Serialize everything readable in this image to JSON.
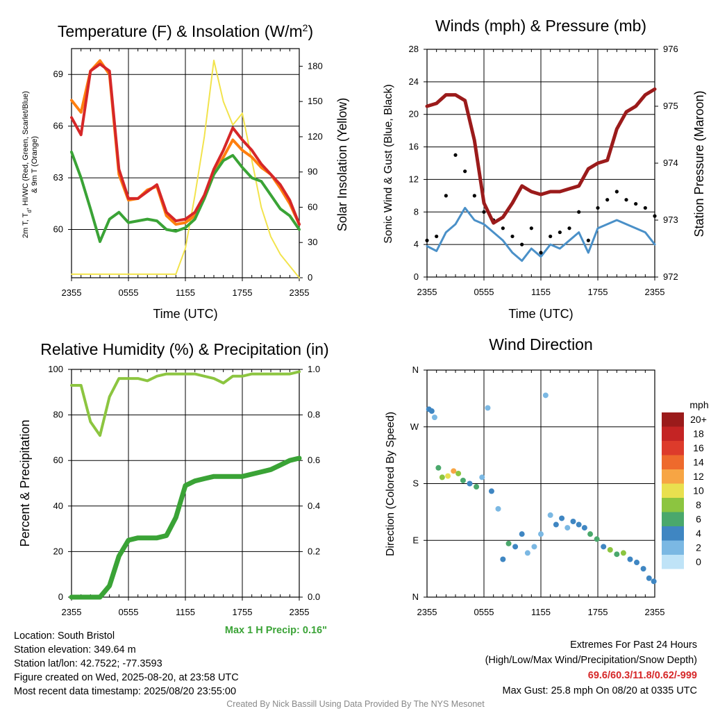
{
  "panels": {
    "temp": {
      "title": "Temperature (F) & Insolation (W/m2)",
      "ylabel_left_line1": "2m T, Td, HI/WC (Red, Green, Scarlet/Blue)",
      "ylabel_left_line2": "& 9m T (Orange)",
      "ylabel_right": "Solar Insolation (Yellow)",
      "xlabel": "Time (UTC)"
    },
    "wind": {
      "title": "Winds (mph) & Pressure (mb)",
      "ylabel_left": "Sonic Wind & Gust (Blue, Black)",
      "ylabel_right": "Station Pressure (Maroon)",
      "xlabel": "Time (UTC)"
    },
    "rh": {
      "title": "Relative Humidity (%) & Precipitation (in)",
      "ylabel_left": "Percent & Precipitation",
      "max_precip": "Max 1 H Precip: 0.16\""
    },
    "dir": {
      "title": "Wind Direction",
      "ylabel_left": "Direction (Colored By Speed)",
      "legend_title": "mph"
    }
  },
  "chart_data": [
    {
      "type": "line",
      "title": "Temperature (F) & Insolation (W/m2)",
      "xlabel": "Time (UTC)",
      "x_ticks": [
        "2355",
        "0555",
        "1155",
        "1755",
        "2355"
      ],
      "ylim": [
        57.2,
        70.5
      ],
      "y_ticks": [
        60,
        63,
        66,
        69
      ],
      "y2lim": [
        0,
        195
      ],
      "y2_ticks": [
        0,
        30,
        60,
        90,
        120,
        150,
        180
      ],
      "x_hours": [
        0,
        1,
        2,
        3,
        4,
        5,
        6,
        7,
        8,
        9,
        10,
        11,
        12,
        13,
        14,
        15,
        16,
        17,
        18,
        19,
        20,
        21,
        22,
        23,
        24
      ],
      "series": [
        {
          "name": "2m T",
          "color": "#d62728",
          "values": [
            66.5,
            65.5,
            69.2,
            69.6,
            69.2,
            63.5,
            61.8,
            61.8,
            62.2,
            62.6,
            61.0,
            60.5,
            60.6,
            61.0,
            62.0,
            63.5,
            64.6,
            65.9,
            65.2,
            64.6,
            63.8,
            63.2,
            62.6,
            61.7,
            60.3
          ]
        },
        {
          "name": "9m T",
          "color": "#ff7f0e",
          "values": [
            67.5,
            66.8,
            69.2,
            69.8,
            69.0,
            63.2,
            61.7,
            61.8,
            62.3,
            62.5,
            60.8,
            60.3,
            60.4,
            60.8,
            61.8,
            63.2,
            64.2,
            65.2,
            64.6,
            64.2,
            63.6,
            63.2,
            62.4,
            61.5,
            60.3
          ]
        },
        {
          "name": "Td",
          "color": "#3aa336",
          "values": [
            64.5,
            63.0,
            61.2,
            59.3,
            60.6,
            61.0,
            60.4,
            60.5,
            60.6,
            60.5,
            60.0,
            59.9,
            60.1,
            60.6,
            61.8,
            63.2,
            64.0,
            64.3,
            63.6,
            63.0,
            62.8,
            62.0,
            61.2,
            60.8,
            60.0
          ]
        },
        {
          "name": "Solar Insolation",
          "color": "#f2e34c",
          "axis": "right",
          "values": [
            3,
            3,
            3,
            3,
            3,
            3,
            3,
            3,
            3,
            3,
            3,
            3,
            25,
            70,
            120,
            185,
            150,
            130,
            140,
            100,
            60,
            35,
            20,
            10,
            0
          ]
        }
      ]
    },
    {
      "type": "line",
      "title": "Winds (mph) & Pressure (mb)",
      "xlabel": "Time (UTC)",
      "x_ticks": [
        "2355",
        "0555",
        "1155",
        "1755",
        "2355"
      ],
      "ylim": [
        0,
        28
      ],
      "y_ticks": [
        0,
        4,
        8,
        12,
        16,
        20,
        24,
        28
      ],
      "y2lim": [
        972,
        976
      ],
      "y2_ticks": [
        972,
        973,
        974,
        975,
        976
      ],
      "x_hours": [
        0,
        1,
        2,
        3,
        4,
        5,
        6,
        7,
        8,
        9,
        10,
        11,
        12,
        13,
        14,
        15,
        16,
        17,
        18,
        19,
        20,
        21,
        22,
        23,
        24
      ],
      "series": [
        {
          "name": "Sonic Wind",
          "color": "#4a90c8",
          "values": [
            3.8,
            3.2,
            5.5,
            6.5,
            8.5,
            7.0,
            6.5,
            5.5,
            4.5,
            3.0,
            2.0,
            3.5,
            2.5,
            4.0,
            3.5,
            4.5,
            5.5,
            3.0,
            6.0,
            6.5,
            7.0,
            6.5,
            6.0,
            5.5,
            4.0
          ]
        },
        {
          "name": "Gust",
          "color": "#000000",
          "values": [
            4.5,
            5.0,
            10.0,
            15.0,
            13.0,
            10.0,
            8.0,
            7.0,
            6.0,
            5.0,
            4.0,
            6.0,
            3.0,
            5.0,
            5.5,
            6.0,
            8.0,
            4.5,
            8.5,
            9.5,
            10.5,
            9.5,
            9.0,
            8.5,
            7.5
          ]
        },
        {
          "name": "Station Pressure",
          "color": "#9b1b1b",
          "axis": "right",
          "values": [
            975.0,
            975.05,
            975.2,
            975.2,
            975.1,
            974.4,
            973.3,
            972.95,
            973.05,
            973.3,
            973.6,
            973.5,
            973.45,
            973.5,
            973.5,
            973.55,
            973.6,
            973.9,
            974.0,
            974.05,
            974.6,
            974.9,
            975.0,
            975.2,
            975.3
          ]
        }
      ]
    },
    {
      "type": "line",
      "title": "Relative Humidity (%) & Precipitation (in)",
      "x_ticks": [
        "2355",
        "0555",
        "1155",
        "1755",
        "2355"
      ],
      "ylim": [
        0,
        100
      ],
      "y_ticks": [
        0,
        20,
        40,
        60,
        80,
        100
      ],
      "y2lim": [
        0,
        1.0
      ],
      "y2_ticks": [
        "0.0",
        "0.2",
        "0.4",
        "0.6",
        "0.8",
        "1.0"
      ],
      "x_hours": [
        0,
        1,
        2,
        3,
        4,
        5,
        6,
        7,
        8,
        9,
        10,
        11,
        12,
        13,
        14,
        15,
        16,
        17,
        18,
        19,
        20,
        21,
        22,
        23,
        24
      ],
      "series": [
        {
          "name": "Relative Humidity",
          "color": "#8cc540",
          "values": [
            93,
            93,
            77,
            71,
            88,
            96,
            96,
            96,
            95,
            97,
            98,
            98,
            98,
            98,
            97,
            96,
            94,
            97,
            97,
            98,
            98,
            98,
            98,
            98,
            99
          ]
        },
        {
          "name": "Precipitation",
          "color": "#3aa336",
          "axis": "right",
          "values": [
            0.0,
            0.0,
            0.0,
            0.0,
            0.05,
            0.18,
            0.25,
            0.26,
            0.26,
            0.26,
            0.27,
            0.35,
            0.49,
            0.51,
            0.52,
            0.53,
            0.53,
            0.53,
            0.53,
            0.54,
            0.55,
            0.56,
            0.58,
            0.6,
            0.61
          ]
        }
      ]
    },
    {
      "type": "scatter",
      "title": "Wind Direction",
      "x_ticks": [
        "2355",
        "0555",
        "1155",
        "1755",
        "2355"
      ],
      "y_ticks": [
        "N",
        "E",
        "S",
        "W",
        "N"
      ],
      "ylim": [
        0,
        360
      ],
      "points": [
        {
          "x": 0.2,
          "y": 298,
          "s": 3
        },
        {
          "x": 0.5,
          "y": 295,
          "s": 3
        },
        {
          "x": 0.8,
          "y": 285,
          "s": 2
        },
        {
          "x": 1.2,
          "y": 205,
          "s": 5
        },
        {
          "x": 1.6,
          "y": 190,
          "s": 8
        },
        {
          "x": 2.2,
          "y": 192,
          "s": 10
        },
        {
          "x": 2.8,
          "y": 200,
          "s": 12
        },
        {
          "x": 3.3,
          "y": 196,
          "s": 8
        },
        {
          "x": 3.8,
          "y": 185,
          "s": 6
        },
        {
          "x": 4.5,
          "y": 180,
          "s": 4
        },
        {
          "x": 5.2,
          "y": 175,
          "s": 6
        },
        {
          "x": 5.8,
          "y": 190,
          "s": 2
        },
        {
          "x": 6.4,
          "y": 300,
          "s": 1
        },
        {
          "x": 6.8,
          "y": 168,
          "s": 4
        },
        {
          "x": 7.5,
          "y": 140,
          "s": 2
        },
        {
          "x": 8.0,
          "y": 60,
          "s": 4
        },
        {
          "x": 8.6,
          "y": 85,
          "s": 6
        },
        {
          "x": 9.3,
          "y": 80,
          "s": 4
        },
        {
          "x": 10.0,
          "y": 100,
          "s": 4
        },
        {
          "x": 10.6,
          "y": 70,
          "s": 2
        },
        {
          "x": 11.3,
          "y": 80,
          "s": 2
        },
        {
          "x": 12.0,
          "y": 100,
          "s": 2
        },
        {
          "x": 12.5,
          "y": 320,
          "s": 1
        },
        {
          "x": 13.0,
          "y": 130,
          "s": 2
        },
        {
          "x": 13.6,
          "y": 115,
          "s": 4
        },
        {
          "x": 14.2,
          "y": 125,
          "s": 4
        },
        {
          "x": 14.8,
          "y": 110,
          "s": 2
        },
        {
          "x": 15.4,
          "y": 120,
          "s": 4
        },
        {
          "x": 16.0,
          "y": 115,
          "s": 4
        },
        {
          "x": 16.6,
          "y": 110,
          "s": 4
        },
        {
          "x": 17.2,
          "y": 100,
          "s": 6
        },
        {
          "x": 17.9,
          "y": 92,
          "s": 6
        },
        {
          "x": 18.6,
          "y": 80,
          "s": 4
        },
        {
          "x": 19.3,
          "y": 75,
          "s": 8
        },
        {
          "x": 20.0,
          "y": 68,
          "s": 6
        },
        {
          "x": 20.7,
          "y": 70,
          "s": 8
        },
        {
          "x": 21.4,
          "y": 60,
          "s": 4
        },
        {
          "x": 22.1,
          "y": 55,
          "s": 4
        },
        {
          "x": 22.8,
          "y": 45,
          "s": 4
        },
        {
          "x": 23.4,
          "y": 30,
          "s": 4
        },
        {
          "x": 23.9,
          "y": 25,
          "s": 4
        }
      ],
      "colorbar": {
        "labels": [
          "20+",
          "18",
          "16",
          "14",
          "12",
          "10",
          "8",
          "6",
          "4",
          "2",
          "0"
        ],
        "colors": [
          "#9b1b1b",
          "#c42424",
          "#dd3b2b",
          "#ee6a2c",
          "#f7a544",
          "#e9e04f",
          "#8cc540",
          "#4aa86c",
          "#3f86c2",
          "#7bb8e3",
          "#bfe3f7"
        ]
      }
    }
  ],
  "footer": {
    "location": "Location: South Bristol",
    "elevation": "Station elevation: 349.64 m",
    "latlon": "Station lat/lon: 42.7522; -77.3593",
    "created": "Figure created on Wed, 2025-08-20, at 23:58 UTC",
    "recent": "Most recent data timestamp: 2025/08/20 23:55:00",
    "extremes_title": "Extremes For Past 24 Hours",
    "extremes_sub": "(High/Low/Max Wind/Precipitation/Snow Depth)",
    "extremes_values": "69.6/60.3/11.8/0.62/-999",
    "max_gust": "Max Gust: 25.8 mph On 08/20 at 0335 UTC",
    "credit": "Created By Nick Bassill Using Data Provided By The NYS Mesonet"
  }
}
